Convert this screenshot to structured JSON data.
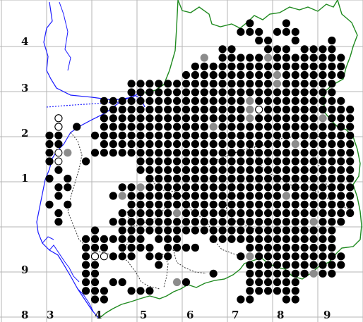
{
  "map": {
    "row_labels": [
      "4",
      "3",
      "2",
      "1",
      "9"
    ],
    "col_labels": [
      "8",
      "3",
      "4",
      "5",
      "6",
      "7",
      "8",
      "9"
    ],
    "colors": {
      "grid": "#b5b5b5",
      "coast": "#1a1aff",
      "border": "#1f8a1f",
      "internal_boundary": "#333333",
      "record_present": "#000000",
      "record_old": "#8c8c8c",
      "record_uncertain_fill": "#ffffff"
    },
    "legend_note": ""
  }
}
